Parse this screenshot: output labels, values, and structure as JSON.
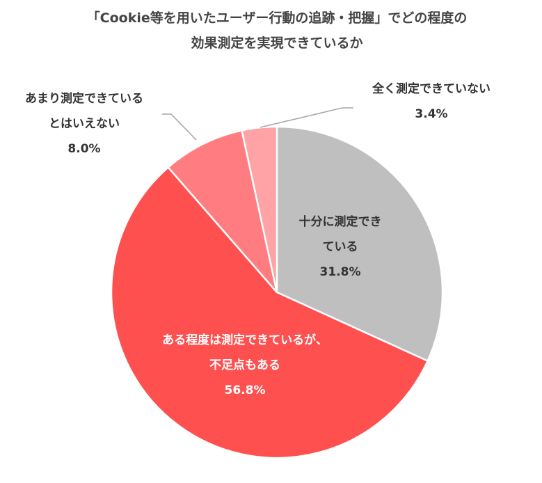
{
  "chart_data": {
    "type": "pie",
    "title_lines": [
      "「Cookie等を用いたユーザー行動の追跡・把握」でどの程度の",
      "効果測定を実現できているか"
    ],
    "slices": [
      {
        "label_lines": [
          "十分に測定でき",
          "ている"
        ],
        "value": 31.8,
        "value_label": "31.8%",
        "color": "#bfbfbf"
      },
      {
        "label_lines": [
          "ある程度は測定できているが、",
          "不足点もある"
        ],
        "value": 56.8,
        "value_label": "56.8%",
        "color": "#ff5050"
      },
      {
        "label_lines": [
          "あまり測定できている",
          "とはいえない"
        ],
        "value": 8.0,
        "value_label": "8.0%",
        "color": "#ff7c80"
      },
      {
        "label_lines": [
          "全く測定できていない"
        ],
        "value": 3.4,
        "value_label": "3.4%",
        "color": "#ffa3a6"
      }
    ],
    "start_angle": "12 o'clock",
    "direction": "clockwise",
    "legend": "none"
  }
}
